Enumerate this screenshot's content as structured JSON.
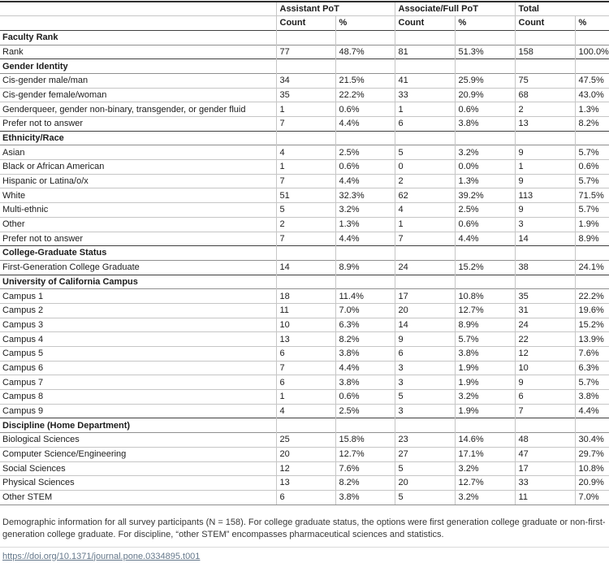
{
  "table": {
    "col_groups": [
      {
        "label": "Assistant PoT"
      },
      {
        "label": "Associate/Full PoT"
      },
      {
        "label": "Total"
      }
    ],
    "sub_headers": [
      "Count",
      "%",
      "Count",
      "%",
      "Count",
      "%"
    ],
    "sections": [
      {
        "title": "Faculty Rank",
        "rows": [
          {
            "label": "Rank",
            "values": [
              "77",
              "48.7%",
              "81",
              "51.3%",
              "158",
              "100.0%"
            ]
          }
        ]
      },
      {
        "title": "Gender Identity",
        "rows": [
          {
            "label": "Cis-gender male/man",
            "values": [
              "34",
              "21.5%",
              "41",
              "25.9%",
              "75",
              "47.5%"
            ]
          },
          {
            "label": "Cis-gender female/woman",
            "values": [
              "35",
              "22.2%",
              "33",
              "20.9%",
              "68",
              "43.0%"
            ]
          },
          {
            "label": "Genderqueer, gender non-binary, transgender, or gender fluid",
            "values": [
              "1",
              "0.6%",
              "1",
              "0.6%",
              "2",
              "1.3%"
            ]
          },
          {
            "label": "Prefer not to answer",
            "values": [
              "7",
              "4.4%",
              "6",
              "3.8%",
              "13",
              "8.2%"
            ]
          }
        ]
      },
      {
        "title": "Ethnicity/Race",
        "rows": [
          {
            "label": "Asian",
            "values": [
              "4",
              "2.5%",
              "5",
              "3.2%",
              "9",
              "5.7%"
            ]
          },
          {
            "label": "Black or African American",
            "values": [
              "1",
              "0.6%",
              "0",
              "0.0%",
              "1",
              "0.6%"
            ]
          },
          {
            "label": "Hispanic or Latina/o/x",
            "values": [
              "7",
              "4.4%",
              "2",
              "1.3%",
              "9",
              "5.7%"
            ]
          },
          {
            "label": "White",
            "values": [
              "51",
              "32.3%",
              "62",
              "39.2%",
              "113",
              "71.5%"
            ]
          },
          {
            "label": "Multi-ethnic",
            "values": [
              "5",
              "3.2%",
              "4",
              "2.5%",
              "9",
              "5.7%"
            ]
          },
          {
            "label": "Other",
            "values": [
              "2",
              "1.3%",
              "1",
              "0.6%",
              "3",
              "1.9%"
            ]
          },
          {
            "label": "Prefer not to answer",
            "values": [
              "7",
              "4.4%",
              "7",
              "4.4%",
              "14",
              "8.9%"
            ]
          }
        ]
      },
      {
        "title": "College-Graduate Status",
        "rows": [
          {
            "label": "First-Generation College Graduate",
            "values": [
              "14",
              "8.9%",
              "24",
              "15.2%",
              "38",
              "24.1%"
            ]
          }
        ]
      },
      {
        "title": "University of California Campus",
        "rows": [
          {
            "label": "Campus 1",
            "values": [
              "18",
              "11.4%",
              "17",
              "10.8%",
              "35",
              "22.2%"
            ]
          },
          {
            "label": "Campus 2",
            "values": [
              "11",
              "7.0%",
              "20",
              "12.7%",
              "31",
              "19.6%"
            ]
          },
          {
            "label": "Campus 3",
            "values": [
              "10",
              "6.3%",
              "14",
              "8.9%",
              "24",
              "15.2%"
            ]
          },
          {
            "label": "Campus 4",
            "values": [
              "13",
              "8.2%",
              "9",
              "5.7%",
              "22",
              "13.9%"
            ]
          },
          {
            "label": "Campus 5",
            "values": [
              "6",
              "3.8%",
              "6",
              "3.8%",
              "12",
              "7.6%"
            ]
          },
          {
            "label": "Campus 6",
            "values": [
              "7",
              "4.4%",
              "3",
              "1.9%",
              "10",
              "6.3%"
            ]
          },
          {
            "label": "Campus 7",
            "values": [
              "6",
              "3.8%",
              "3",
              "1.9%",
              "9",
              "5.7%"
            ]
          },
          {
            "label": "Campus 8",
            "values": [
              "1",
              "0.6%",
              "5",
              "3.2%",
              "6",
              "3.8%"
            ]
          },
          {
            "label": "Campus 9",
            "values": [
              "4",
              "2.5%",
              "3",
              "1.9%",
              "7",
              "4.4%"
            ]
          }
        ]
      },
      {
        "title": "Discipline (Home Department)",
        "rows": [
          {
            "label": "Biological Sciences",
            "values": [
              "25",
              "15.8%",
              "23",
              "14.6%",
              "48",
              "30.4%"
            ]
          },
          {
            "label": "Computer Science/Engineering",
            "values": [
              "20",
              "12.7%",
              "27",
              "17.1%",
              "47",
              "29.7%"
            ]
          },
          {
            "label": "Social Sciences",
            "values": [
              "12",
              "7.6%",
              "5",
              "3.2%",
              "17",
              "10.8%"
            ]
          },
          {
            "label": "Physical Sciences",
            "values": [
              "13",
              "8.2%",
              "20",
              "12.7%",
              "33",
              "20.9%"
            ]
          },
          {
            "label": "Other STEM",
            "values": [
              "6",
              "3.8%",
              "5",
              "3.2%",
              "11",
              "7.0%"
            ]
          }
        ]
      }
    ]
  },
  "footer": {
    "caption": "Demographic information for all survey participants (N = 158). For college graduate status, the options were first generation college graduate or non-first-generation college graduate. For discipline, “other STEM” encompasses pharmaceutical sciences and statistics.",
    "doi_url": "https://doi.org/10.1371/journal.pone.0334895.t001"
  },
  "colors": {
    "link": "#64778a",
    "table_top_border": "#2e2e2e",
    "section_border": "#3f3f3f",
    "row_border": "#c6c6c6"
  }
}
